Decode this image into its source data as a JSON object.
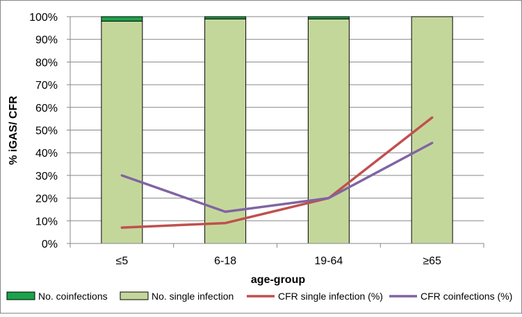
{
  "chart_data": {
    "type": "bar",
    "title": "",
    "xlabel": "age-group",
    "ylabel": "% iGAS/ CFR",
    "categories": [
      "≤5",
      "6-18",
      "19-64",
      "≥65"
    ],
    "ylim": [
      0,
      1
    ],
    "yticks": [
      "0%",
      "10%",
      "20%",
      "30%",
      "40%",
      "50%",
      "60%",
      "70%",
      "80%",
      "90%",
      "100%"
    ],
    "grid": true,
    "legend_position": "bottom",
    "bar_series": [
      {
        "name": "No. coinfections",
        "color": "#1ba34c",
        "values": [
          0.02,
          0.01,
          0.01,
          0.0
        ]
      },
      {
        "name": "No. single infection",
        "color": "#c4d79b",
        "values": [
          0.98,
          0.99,
          0.99,
          1.0
        ]
      }
    ],
    "line_series": [
      {
        "name": "CFR single infection (%)",
        "color": "#c0504d",
        "values": [
          0.07,
          0.09,
          0.2,
          0.555
        ]
      },
      {
        "name": "CFR coinfections (%)",
        "color": "#8064a2",
        "values": [
          0.3,
          0.14,
          0.2,
          0.443
        ]
      }
    ]
  }
}
